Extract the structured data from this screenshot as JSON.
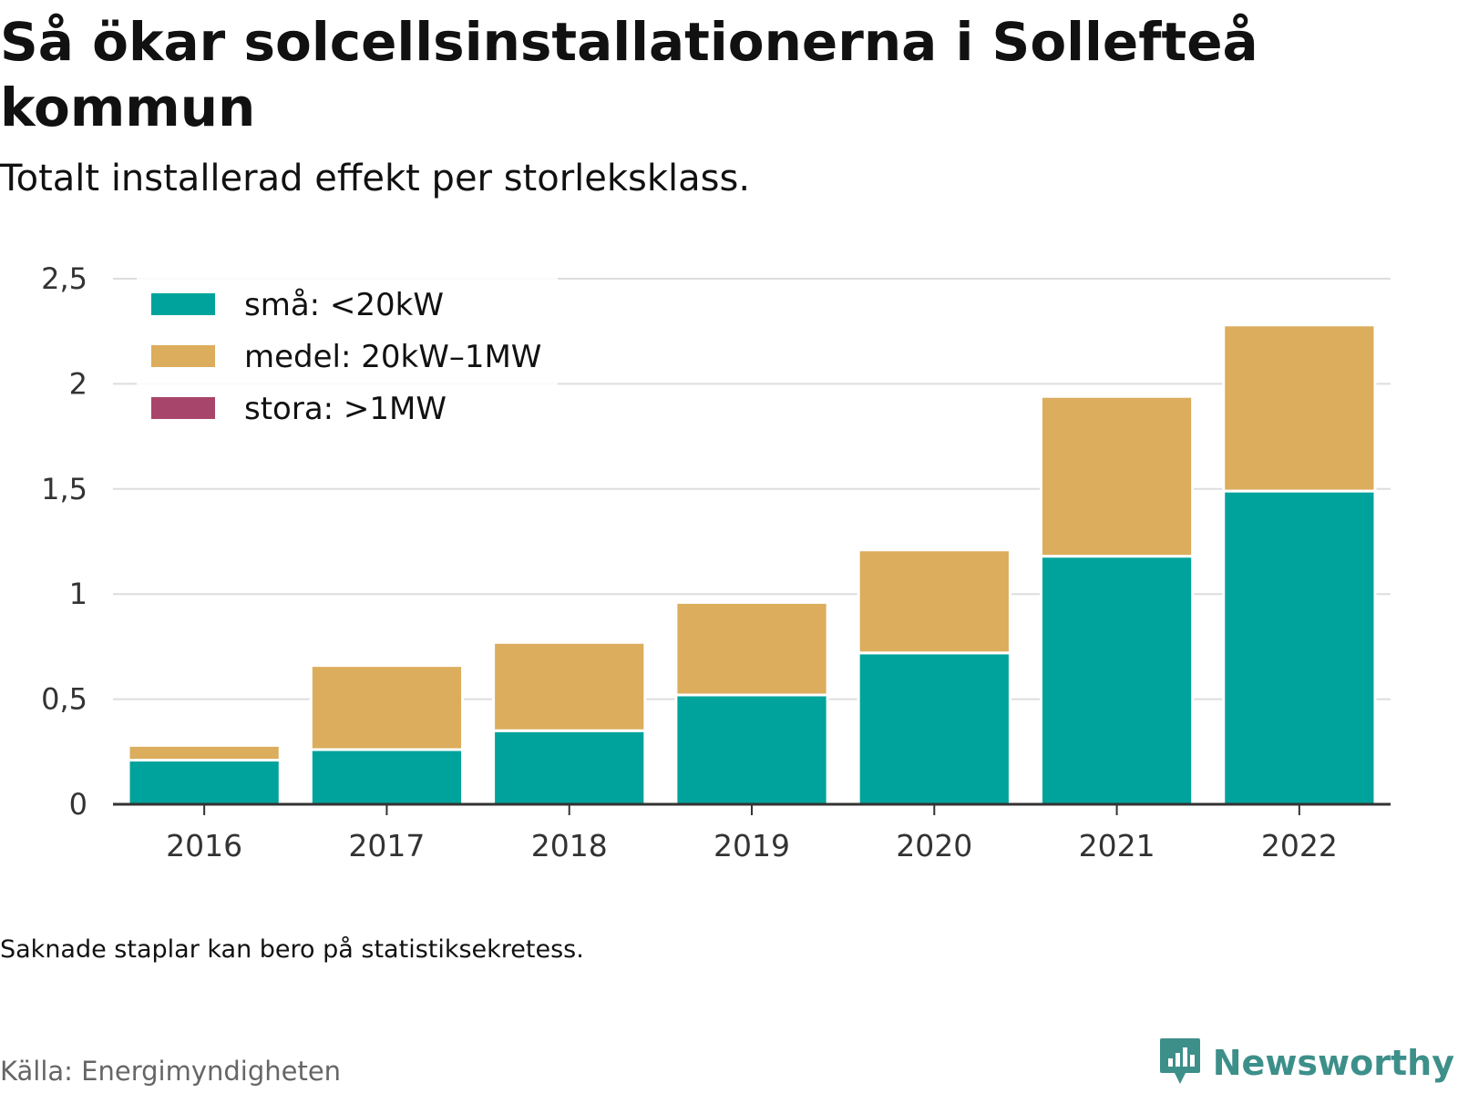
{
  "header": {
    "title": "Så ökar solcellsinstallationerna i Sollefteå kommun",
    "subtitle": "Totalt installerad effekt per storleksklass."
  },
  "footer": {
    "note": "Saknade staplar kan bero på statistiksekretess.",
    "source": "Källa: Energimyndigheten",
    "brand": "Newsworthy",
    "brand_icon": "newsworthy-logo-icon",
    "brand_color": "#3d8f8a"
  },
  "chart_data": {
    "type": "bar",
    "stacked": true,
    "title": "Så ökar solcellsinstallationerna i Sollefteå kommun",
    "subtitle": "Totalt installerad effekt per storleksklass.",
    "categories": [
      "2016",
      "2017",
      "2018",
      "2019",
      "2020",
      "2021",
      "2022"
    ],
    "series": [
      {
        "name": "små: <20kW",
        "color": "#00a39b",
        "values": [
          0.21,
          0.26,
          0.35,
          0.52,
          0.72,
          1.18,
          1.49
        ]
      },
      {
        "name": "medel: 20kW–1MW",
        "color": "#dbad5c",
        "values": [
          0.07,
          0.4,
          0.42,
          0.44,
          0.49,
          0.76,
          0.79
        ]
      },
      {
        "name": "stora: >1MW",
        "color": "#a8456a",
        "values": [
          0,
          0,
          0,
          0,
          0,
          0,
          0
        ]
      }
    ],
    "ylim": [
      0,
      2.5
    ],
    "yticks": [
      0,
      0.5,
      1,
      1.5,
      2,
      2.5
    ],
    "ytick_labels": [
      "0",
      "0,5",
      "1",
      "1,5",
      "2",
      "2,5"
    ],
    "xlabel": "",
    "ylabel": "",
    "grid": true,
    "legend_position": "top-left"
  }
}
